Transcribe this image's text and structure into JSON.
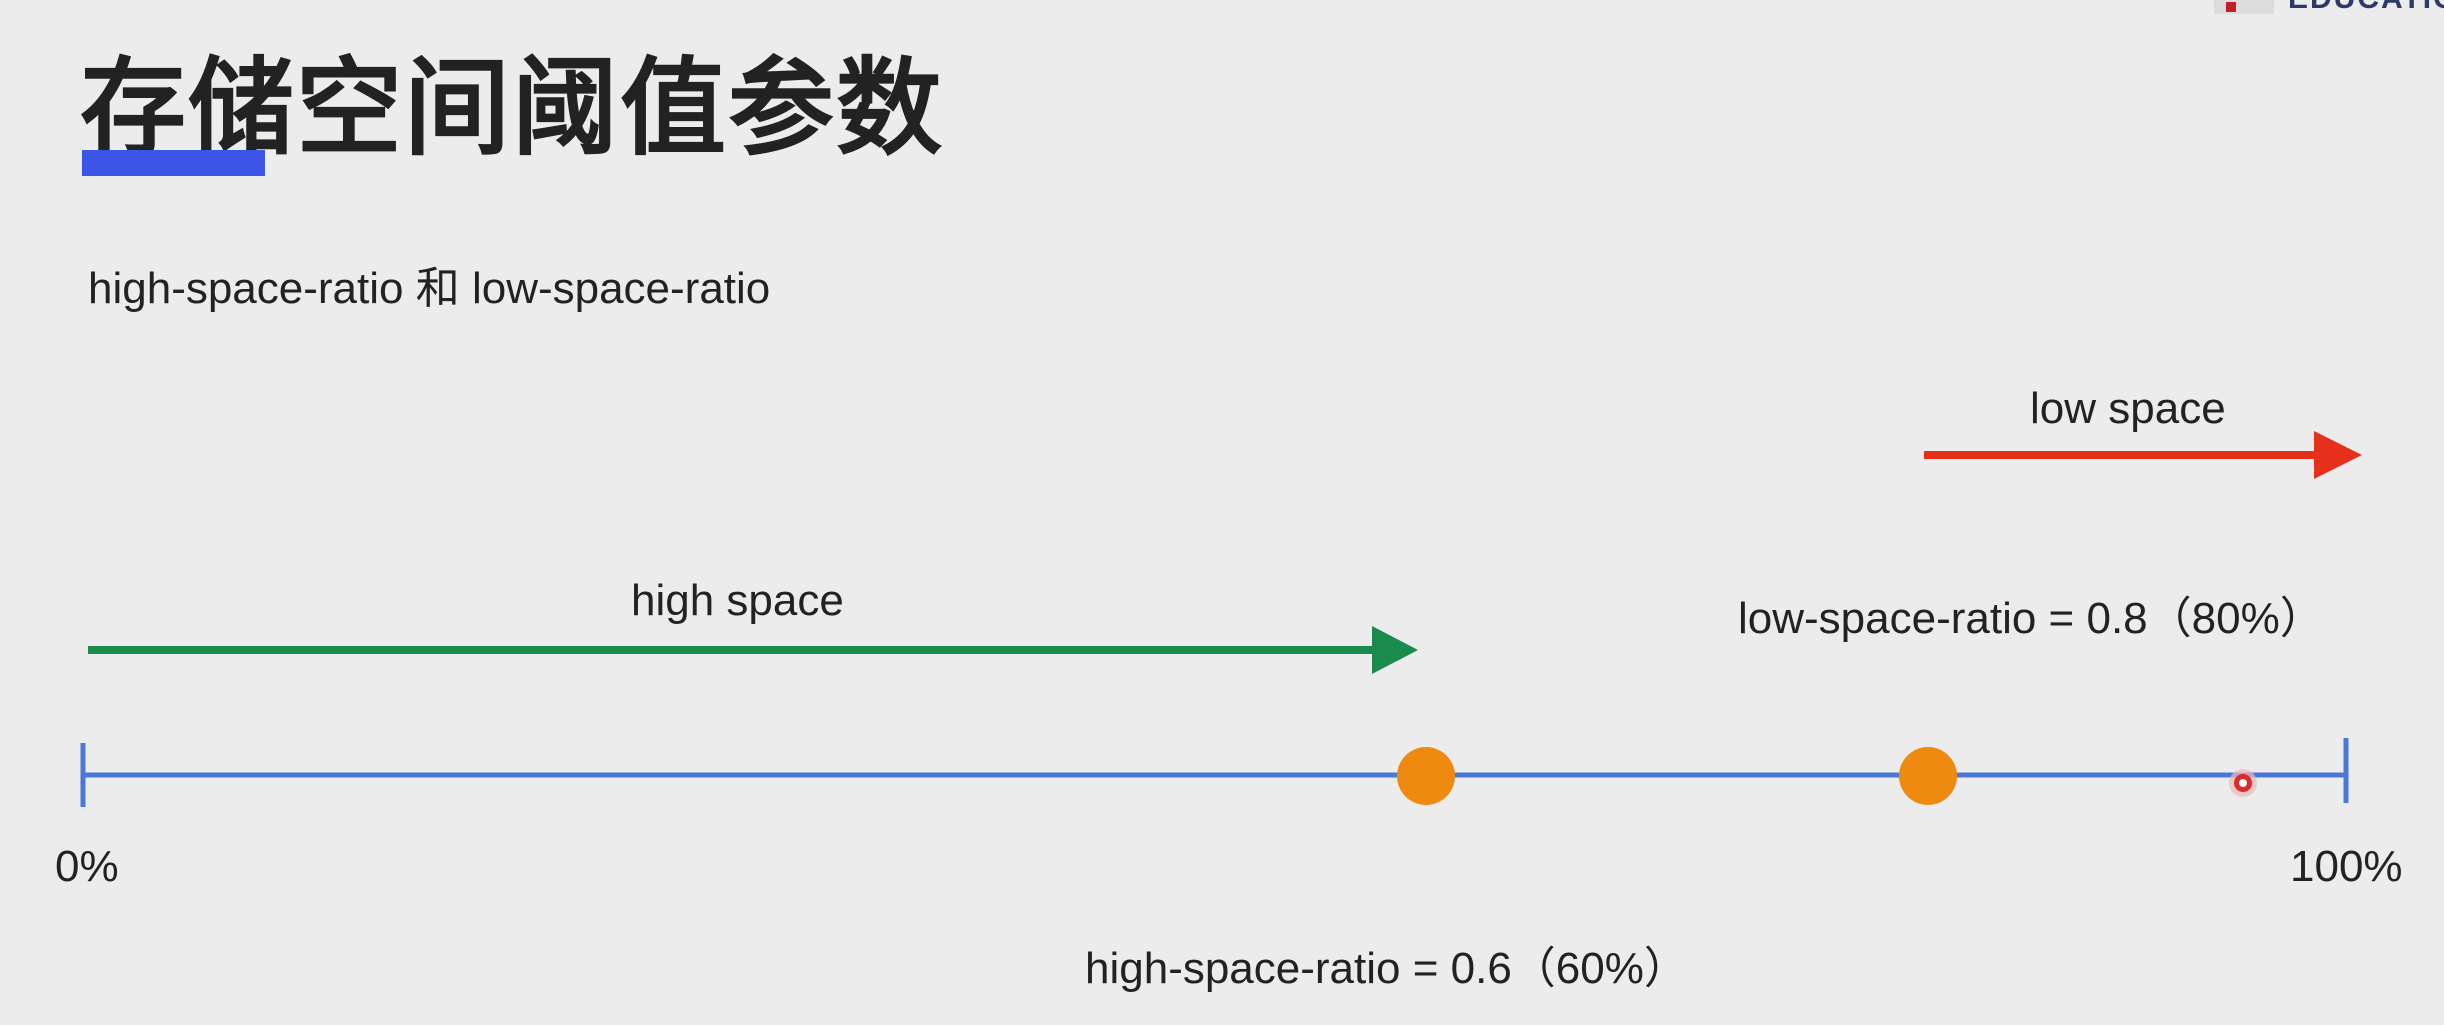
{
  "title": "存储空间阈值参数",
  "subtitle": "high-space-ratio 和 low-space-ratio",
  "logo_text": "EDUCATION",
  "arrows": {
    "high_space_label": "high space",
    "low_space_label": "low space",
    "high_space_color": "#1b8a4d",
    "low_space_color": "#e5301c"
  },
  "scale": {
    "start_label": "0%",
    "end_label": "100%",
    "line_color": "#4a78d8"
  },
  "markers": {
    "high_ratio_label": "high-space-ratio = 0.6（60%）",
    "low_ratio_label": "low-space-ratio = 0.8（80%）",
    "marker_color": "#ef8a10",
    "cursor_color": "#e02a2a"
  }
}
